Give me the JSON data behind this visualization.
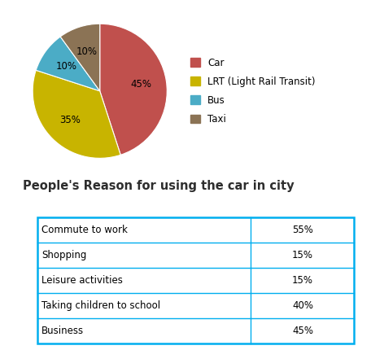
{
  "pie_labels": [
    "Car",
    "LRT (Light Rail Transit)",
    "Bus",
    "Taxi"
  ],
  "pie_values": [
    45,
    35,
    10,
    10
  ],
  "pie_colors": [
    "#C0504D",
    "#C8B400",
    "#4BACC6",
    "#8B7355"
  ],
  "pie_pct_labels": [
    "45%",
    "35%",
    "10%",
    "10%"
  ],
  "legend_labels": [
    "Car",
    "LRT (Light Rail Transit)",
    "Bus",
    "Taxi"
  ],
  "legend_colors": [
    "#C0504D",
    "#C8B400",
    "#4BACC6",
    "#8B7355"
  ],
  "table_title": "People's Reason for using the car in city",
  "table_rows": [
    [
      "Commute to work",
      "55%"
    ],
    [
      "Shopping",
      "15%"
    ],
    [
      "Leisure activities",
      "15%"
    ],
    [
      "Taking children to school",
      "40%"
    ],
    [
      "Business",
      "45%"
    ]
  ],
  "table_border_color": "#00AEEF",
  "background_color": "#FFFFFF"
}
